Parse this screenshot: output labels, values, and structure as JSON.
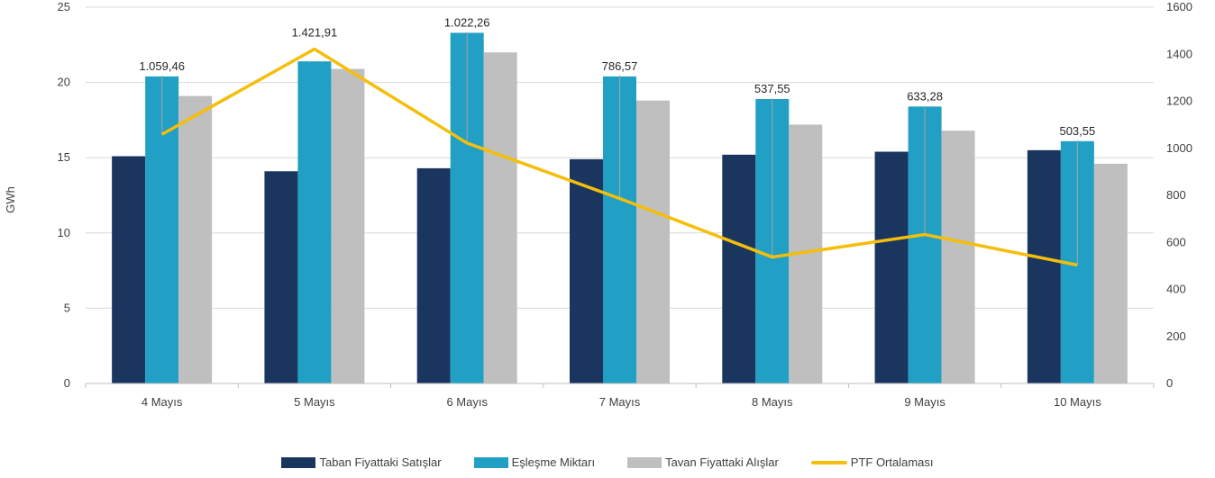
{
  "chart_data": {
    "type": "bar",
    "categories": [
      "4 Mayıs",
      "5 Mayıs",
      "6 Mayıs",
      "7 Mayıs",
      "8 Mayıs",
      "9 Mayıs",
      "10 Mayıs"
    ],
    "ylabel": "GWh",
    "ylim": [
      0,
      25
    ],
    "y_ticks": [
      "0",
      "5",
      "10",
      "15",
      "20",
      "25"
    ],
    "y2lim": [
      0,
      1600
    ],
    "y2_ticks": [
      "0",
      "200",
      "400",
      "600",
      "800",
      "1000",
      "1200",
      "1400",
      "1600"
    ],
    "grid": true,
    "legend_position": "bottom",
    "series": [
      {
        "name": "Taban Fiyattaki Satışlar",
        "type": "bar",
        "axis": "left",
        "color": "#1a355e",
        "values": [
          15.1,
          14.1,
          14.3,
          14.9,
          15.2,
          15.4,
          15.5
        ]
      },
      {
        "name": "Eşleşme Miktarı",
        "type": "bar",
        "axis": "left",
        "color": "#219fc4",
        "values": [
          20.4,
          21.4,
          23.3,
          20.4,
          18.9,
          18.4,
          16.1
        ]
      },
      {
        "name": "Tavan Fiyattaki Alışlar",
        "type": "bar",
        "axis": "left",
        "color": "#bfbfbf",
        "values": [
          19.1,
          20.9,
          22.0,
          18.8,
          17.2,
          16.8,
          14.6
        ]
      },
      {
        "name": "PTF Ortalaması",
        "type": "line",
        "axis": "right",
        "color": "#f5be0b",
        "values": [
          1059.46,
          1421.91,
          1022.26,
          786.57,
          537.55,
          633.28,
          503.55
        ]
      }
    ],
    "data_labels": [
      "1.059,46",
      "1.421,91",
      "1.022,26",
      "786,57",
      "537,55",
      "633,28",
      "503,55"
    ]
  }
}
